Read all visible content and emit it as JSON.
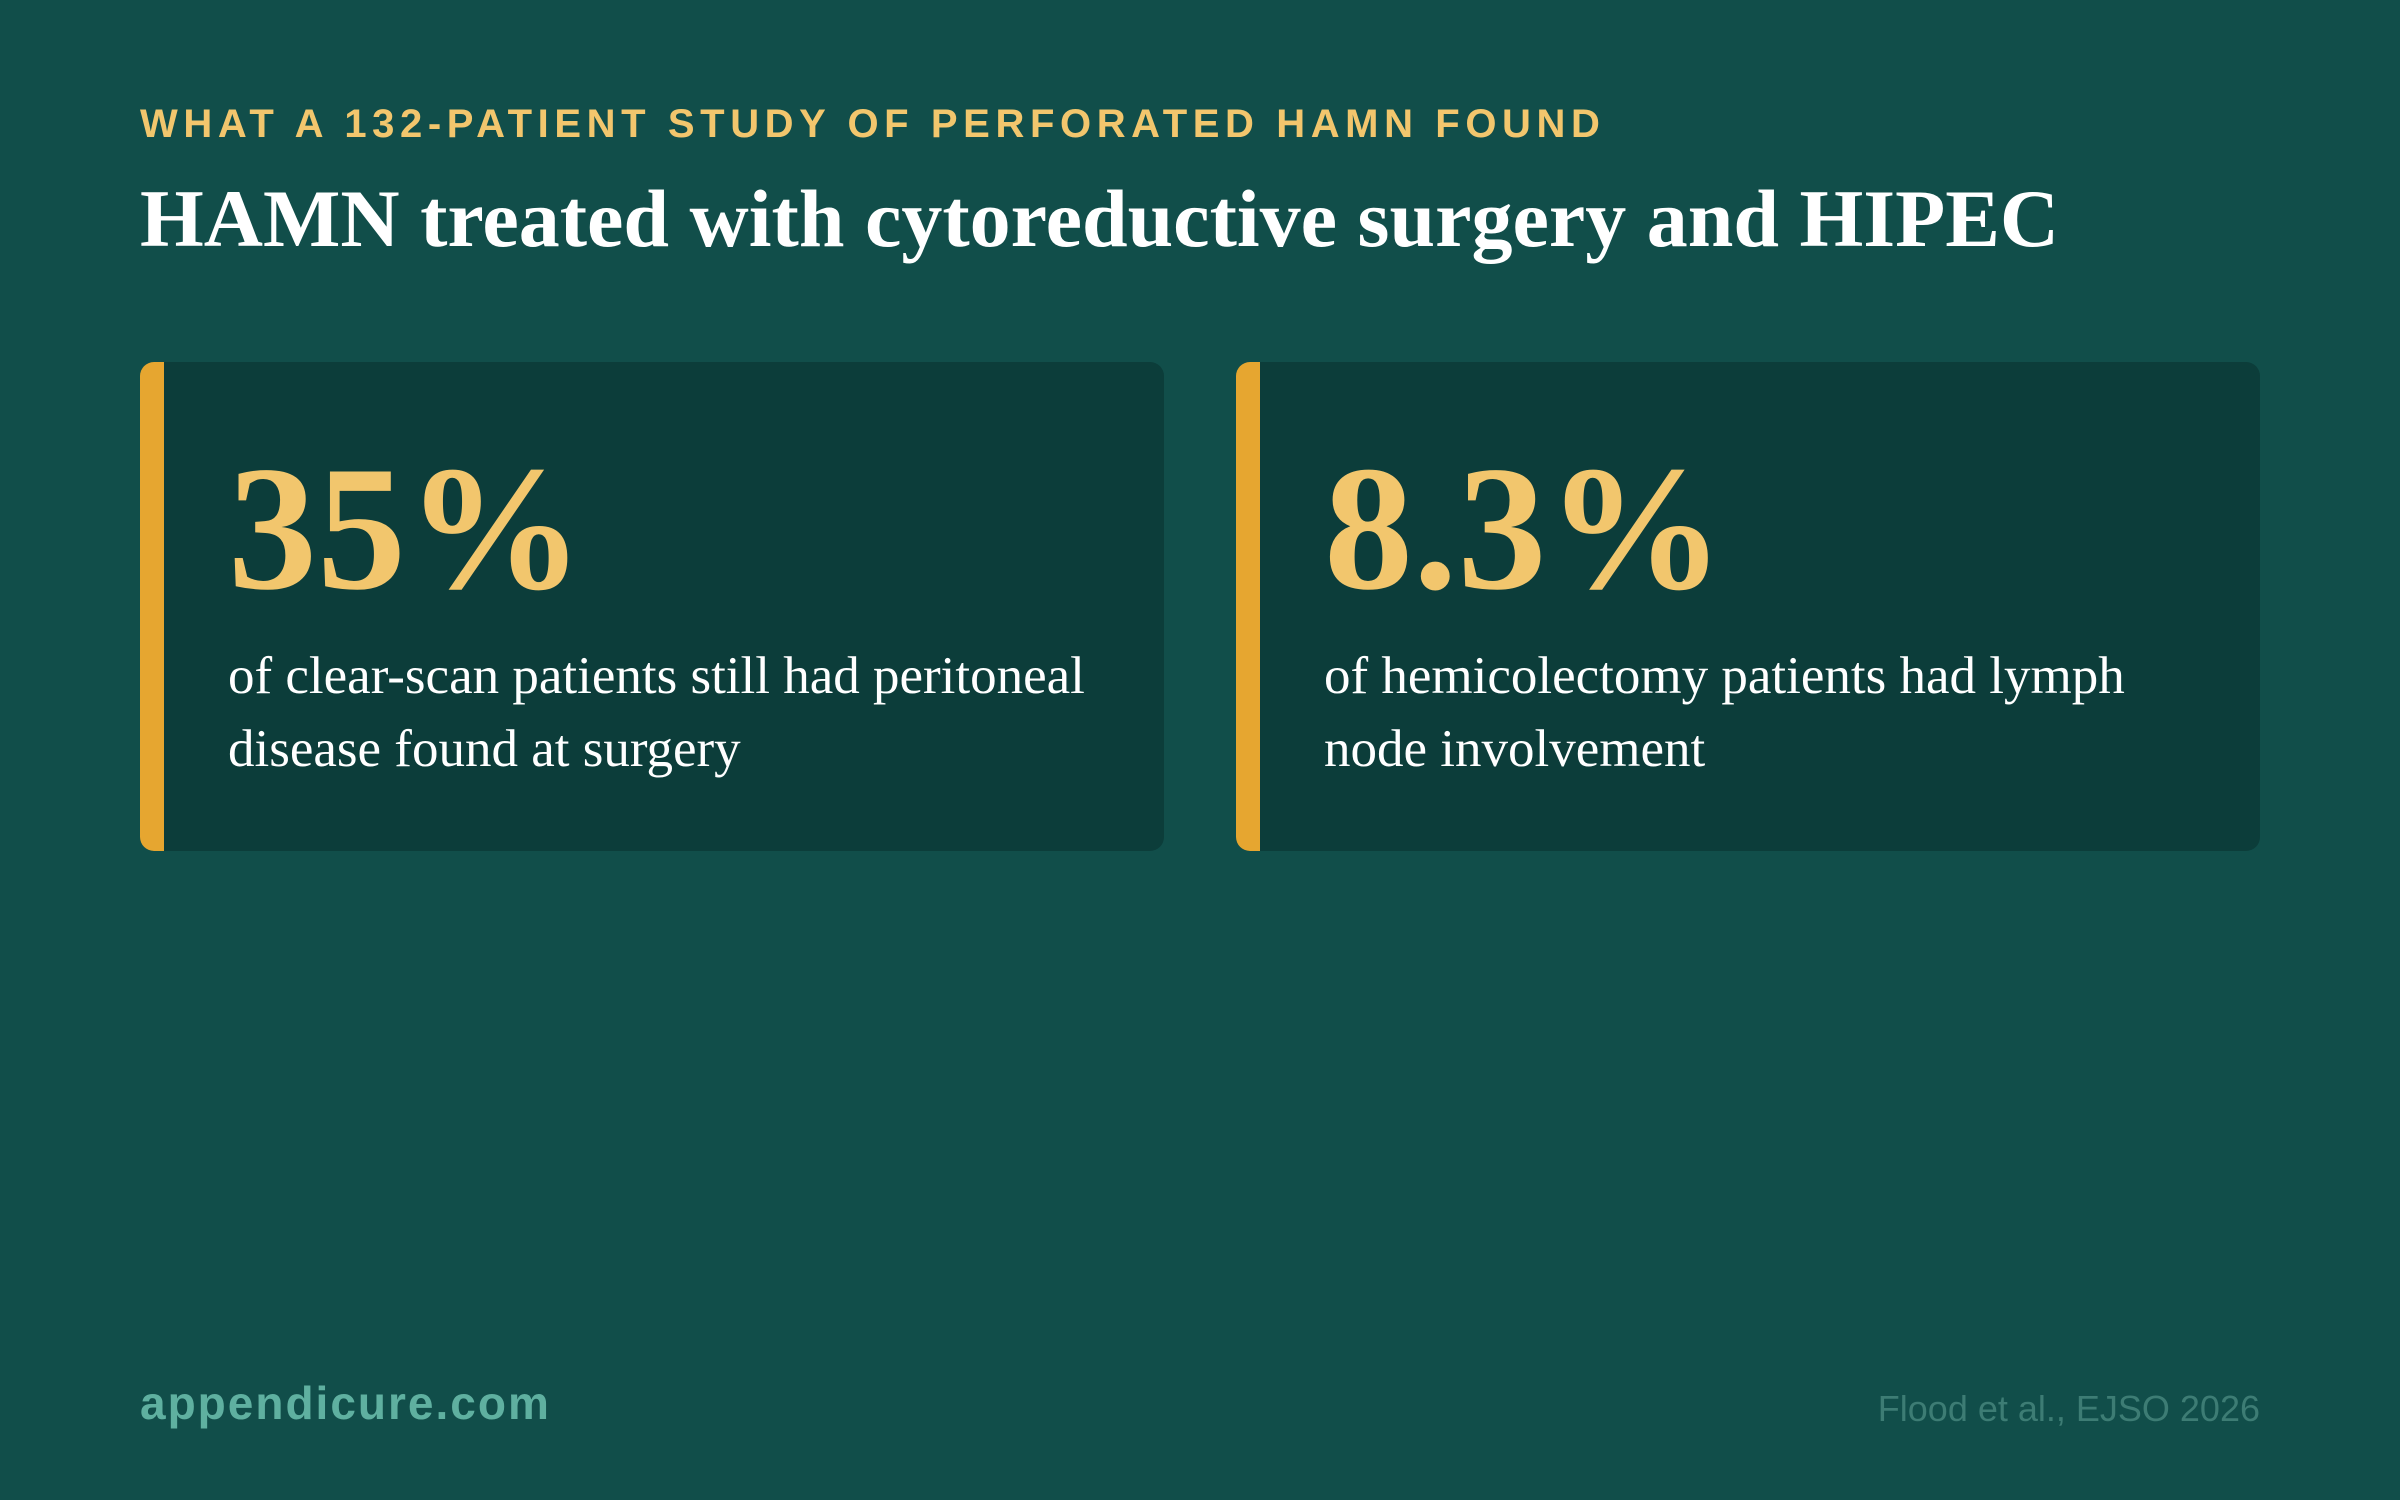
{
  "header": {
    "eyebrow": "WHAT A 132-PATIENT STUDY OF PERFORATED HAMN FOUND",
    "title": "HAMN treated with cytoreductive surgery and HIPEC"
  },
  "stats": [
    {
      "value": "35%",
      "description": "of clear-scan patients still had peritoneal disease found at surgery"
    },
    {
      "value": "8.3%",
      "description": "of hemicolectomy patients had lymph node involvement"
    }
  ],
  "footer": {
    "site": "appendicure.com",
    "citation": "Flood et al., EJSO 2026"
  },
  "colors": {
    "background": "#114e4a",
    "card": "#0c3d3a",
    "accent": "#e6a630",
    "highlight": "#f2c66d",
    "site_text": "#5fb0a0",
    "citation_text": "#3d7c74"
  }
}
